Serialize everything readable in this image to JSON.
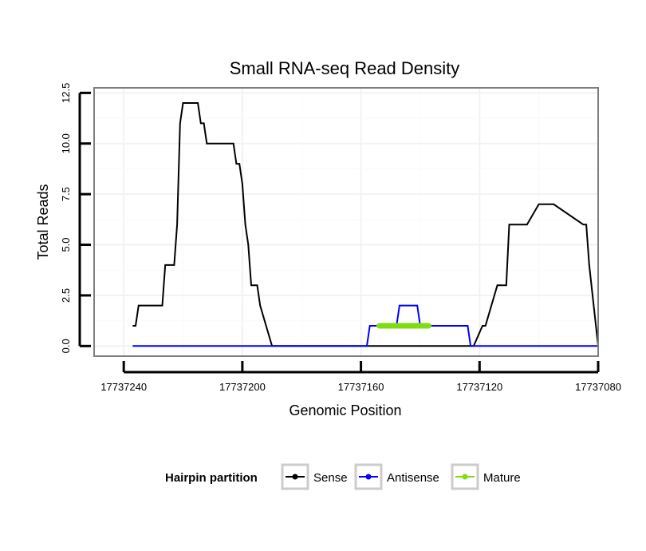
{
  "chart_data": {
    "type": "line",
    "title": "Small RNA-seq Read Density",
    "xlabel": "Genomic Position",
    "ylabel": "Total Reads",
    "xlim": [
      17737250,
      17737080
    ],
    "ylim": [
      -0.5,
      12.75
    ],
    "x_ticks": [
      17737240,
      17737200,
      17737160,
      17737120,
      17737080
    ],
    "x_tick_labels": [
      "17737240",
      "17737200",
      "17737160",
      "17737120",
      "17737080"
    ],
    "y_ticks": [
      0,
      2.5,
      5,
      7.5,
      10,
      12.5
    ],
    "y_tick_labels": [
      "0.0",
      "2.5",
      "5.0",
      "7.5",
      "10.0",
      "12.5"
    ],
    "grid": true,
    "legend": {
      "title": "Hairpin partition",
      "position": "bottom",
      "entries": [
        "Sense",
        "Antisense",
        "Mature"
      ]
    },
    "series": [
      {
        "name": "Sense",
        "color": "#000000",
        "x": [
          17737237,
          17737236,
          17737235,
          17737227,
          17737226,
          17737223,
          17737222,
          17737221,
          17737220,
          17737219,
          17737215,
          17737214,
          17737213,
          17737212,
          17737203,
          17737202,
          17737201,
          17737200,
          17737199,
          17737198,
          17737197,
          17737195,
          17737195,
          17737194,
          17737190,
          17737162,
          17737157,
          17737152,
          17737141,
          17737125,
          17737122,
          17737119,
          17737118,
          17737114,
          17737111,
          17737110,
          17737104,
          17737100,
          17737095,
          17737085,
          17737084,
          17737083,
          17737080
        ],
        "y": [
          1,
          1,
          2,
          2,
          4,
          4,
          6,
          11,
          12,
          12,
          12,
          11,
          11,
          10,
          10,
          9,
          9,
          8,
          6,
          5,
          3,
          3,
          3,
          2,
          0,
          0,
          0,
          0,
          0,
          0,
          0,
          1,
          1,
          3,
          3,
          6,
          6,
          7,
          7,
          6,
          6,
          4,
          0
        ]
      },
      {
        "name": "Antisense",
        "color": "#0000ff",
        "x": [
          17737237,
          17737158,
          17737157,
          17737153,
          17737148,
          17737147,
          17737141,
          17737140,
          17737124,
          17737123,
          17737080
        ],
        "y": [
          0,
          0,
          1,
          1,
          1,
          2,
          2,
          1,
          1,
          0,
          0
        ]
      },
      {
        "name": "Mature",
        "color": "#7fdc12",
        "x": [
          17737154,
          17737137
        ],
        "y": [
          1,
          1
        ]
      }
    ]
  }
}
